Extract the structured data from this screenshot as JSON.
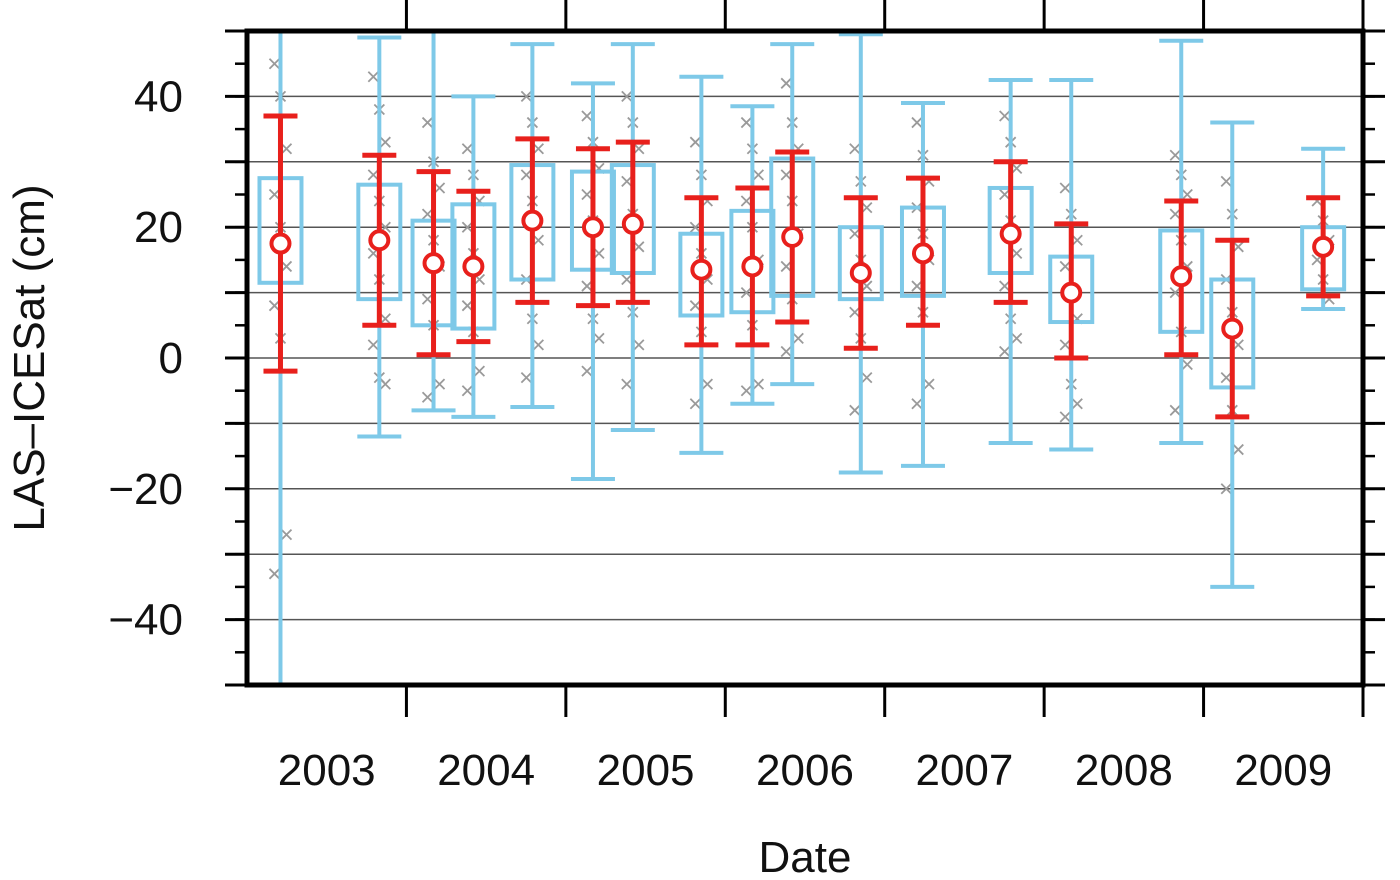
{
  "chart_data": {
    "type": "scatter",
    "xlabel": "Date",
    "ylabel": "LAS–ICESat (cm)",
    "ylim": [
      -50,
      50
    ],
    "xlim": [
      2002.0,
      2009.0
    ],
    "x_tick_labels": [
      "2003",
      "2004",
      "2005",
      "2006",
      "2007",
      "2008",
      "2009"
    ],
    "x_tick_label_positions": [
      2002.5,
      2003.5,
      2004.5,
      2005.5,
      2006.5,
      2007.5,
      2008.5
    ],
    "x_major_ticks": [
      2003,
      2004,
      2005,
      2006,
      2007,
      2008,
      2009
    ],
    "y_ticks": [
      -40,
      -20,
      0,
      20,
      40
    ],
    "y_tick_labels": [
      "−40",
      "−20",
      "0",
      "20",
      "40"
    ],
    "y_gridlines": [
      -40,
      -30,
      -20,
      -10,
      0,
      10,
      20,
      30,
      40
    ],
    "grid": "horizontal",
    "colors": {
      "box": "#7ec9e8",
      "mean": "#e8201c",
      "points": "#9a9a9a",
      "grid": "#555555",
      "frame": "#000000"
    },
    "series": [
      {
        "type": "box",
        "values": [
          {
            "x": 2002.21,
            "whisker_low": -50,
            "q1": 11.5,
            "q3": 27.5,
            "whisker_high": 50
          },
          {
            "x": 2002.83,
            "whisker_low": -12,
            "q1": 9,
            "q3": 26.5,
            "whisker_high": 49
          },
          {
            "x": 2003.17,
            "whisker_low": -8,
            "q1": 5,
            "q3": 21,
            "whisker_high": 50
          },
          {
            "x": 2003.42,
            "whisker_low": -9,
            "q1": 4.5,
            "q3": 23.5,
            "whisker_high": 40
          },
          {
            "x": 2003.79,
            "whisker_low": -7.5,
            "q1": 12,
            "q3": 29.5,
            "whisker_high": 48
          },
          {
            "x": 2004.17,
            "whisker_low": -18.5,
            "q1": 13.5,
            "q3": 28.5,
            "whisker_high": 42
          },
          {
            "x": 2004.42,
            "whisker_low": -11,
            "q1": 13,
            "q3": 29.5,
            "whisker_high": 48
          },
          {
            "x": 2004.85,
            "whisker_low": -14.5,
            "q1": 6.5,
            "q3": 19,
            "whisker_high": 43
          },
          {
            "x": 2005.17,
            "whisker_low": -7,
            "q1": 7,
            "q3": 22.5,
            "whisker_high": 38.5
          },
          {
            "x": 2005.42,
            "whisker_low": -4,
            "q1": 9.5,
            "q3": 30.5,
            "whisker_high": 48
          },
          {
            "x": 2005.85,
            "whisker_low": -17.5,
            "q1": 9,
            "q3": 20,
            "whisker_high": 49.5
          },
          {
            "x": 2006.24,
            "whisker_low": -16.5,
            "q1": 9.5,
            "q3": 23,
            "whisker_high": 39
          },
          {
            "x": 2006.79,
            "whisker_low": -13,
            "q1": 13,
            "q3": 26,
            "whisker_high": 42.5
          },
          {
            "x": 2007.17,
            "whisker_low": -14,
            "q1": 5.5,
            "q3": 15.5,
            "whisker_high": 42.5
          },
          {
            "x": 2007.86,
            "whisker_low": -13,
            "q1": 4,
            "q3": 19.5,
            "whisker_high": 48.5
          },
          {
            "x": 2008.18,
            "whisker_low": -35,
            "q1": -4.5,
            "q3": 12,
            "whisker_high": 36
          },
          {
            "x": 2008.75,
            "whisker_low": 7.5,
            "q1": 10.5,
            "q3": 20,
            "whisker_high": 32
          }
        ]
      },
      {
        "type": "mean_errorbar",
        "values": [
          {
            "x": 2002.21,
            "y": 17.5,
            "low": -2,
            "high": 37
          },
          {
            "x": 2002.83,
            "y": 18,
            "low": 5,
            "high": 31
          },
          {
            "x": 2003.17,
            "y": 14.5,
            "low": 0.5,
            "high": 28.5
          },
          {
            "x": 2003.42,
            "y": 14,
            "low": 2.5,
            "high": 25.5
          },
          {
            "x": 2003.79,
            "y": 21,
            "low": 8.5,
            "high": 33.5
          },
          {
            "x": 2004.17,
            "y": 20,
            "low": 8,
            "high": 32
          },
          {
            "x": 2004.42,
            "y": 20.5,
            "low": 8.5,
            "high": 33
          },
          {
            "x": 2004.85,
            "y": 13.5,
            "low": 2,
            "high": 24.5
          },
          {
            "x": 2005.17,
            "y": 14,
            "low": 2,
            "high": 26
          },
          {
            "x": 2005.42,
            "y": 18.5,
            "low": 5.5,
            "high": 31.5
          },
          {
            "x": 2005.85,
            "y": 13,
            "low": 1.5,
            "high": 24.5
          },
          {
            "x": 2006.24,
            "y": 16,
            "low": 5,
            "high": 27.5
          },
          {
            "x": 2006.79,
            "y": 19,
            "low": 8.5,
            "high": 30
          },
          {
            "x": 2007.17,
            "y": 10,
            "low": 0,
            "high": 20.5
          },
          {
            "x": 2007.86,
            "y": 12.5,
            "low": 0.5,
            "high": 24
          },
          {
            "x": 2008.18,
            "y": 4.5,
            "low": -9,
            "high": 18
          },
          {
            "x": 2008.75,
            "y": 17,
            "low": 9.5,
            "high": 24.5
          }
        ]
      },
      {
        "type": "points",
        "values": [
          {
            "x": 2002.21,
            "y": [
              45,
              40,
              32,
              25,
              20,
              14,
              8,
              3,
              -27,
              -33
            ]
          },
          {
            "x": 2002.83,
            "y": [
              43,
              38,
              33,
              28,
              24,
              20,
              16,
              12,
              6,
              2,
              -3,
              -4
            ]
          },
          {
            "x": 2003.17,
            "y": [
              36,
              30,
              26,
              22,
              18,
              14,
              9,
              5,
              -4,
              -6
            ]
          },
          {
            "x": 2003.42,
            "y": [
              32,
              28,
              24,
              20,
              16,
              12,
              8,
              4,
              -2,
              -5
            ]
          },
          {
            "x": 2003.79,
            "y": [
              40,
              36,
              32,
              28,
              24,
              18,
              12,
              6,
              2,
              -3
            ]
          },
          {
            "x": 2004.17,
            "y": [
              37,
              33,
              29,
              25,
              21,
              16,
              11,
              6,
              3,
              -2
            ]
          },
          {
            "x": 2004.42,
            "y": [
              40,
              36,
              32,
              27,
              22,
              17,
              12,
              7,
              2,
              -4
            ]
          },
          {
            "x": 2004.85,
            "y": [
              33,
              28,
              24,
              20,
              16,
              12,
              8,
              4,
              -4,
              -7
            ]
          },
          {
            "x": 2005.17,
            "y": [
              36,
              32,
              28,
              24,
              20,
              15,
              10,
              5,
              -4,
              -5
            ]
          },
          {
            "x": 2005.42,
            "y": [
              42,
              36,
              32,
              28,
              24,
              19,
              14,
              9,
              3,
              1
            ]
          },
          {
            "x": 2005.85,
            "y": [
              32,
              27,
              23,
              19,
              15,
              11,
              7,
              3,
              -3,
              -8
            ]
          },
          {
            "x": 2006.24,
            "y": [
              36,
              31,
              27,
              23,
              19,
              15,
              11,
              7,
              -4,
              -7
            ]
          },
          {
            "x": 2006.79,
            "y": [
              37,
              33,
              29,
              25,
              21,
              16,
              11,
              6,
              3,
              1
            ]
          },
          {
            "x": 2007.17,
            "y": [
              26,
              22,
              18,
              14,
              10,
              6,
              2,
              -4,
              -7,
              -9
            ]
          },
          {
            "x": 2007.86,
            "y": [
              31,
              28,
              25,
              22,
              18,
              14,
              10,
              4,
              -1,
              -8
            ]
          },
          {
            "x": 2008.18,
            "y": [
              27,
              22,
              17,
              12,
              7,
              2,
              -3,
              -8,
              -14,
              -20
            ]
          },
          {
            "x": 2008.75,
            "y": [
              24,
              21,
              18,
              15,
              12,
              9
            ]
          }
        ]
      }
    ]
  }
}
